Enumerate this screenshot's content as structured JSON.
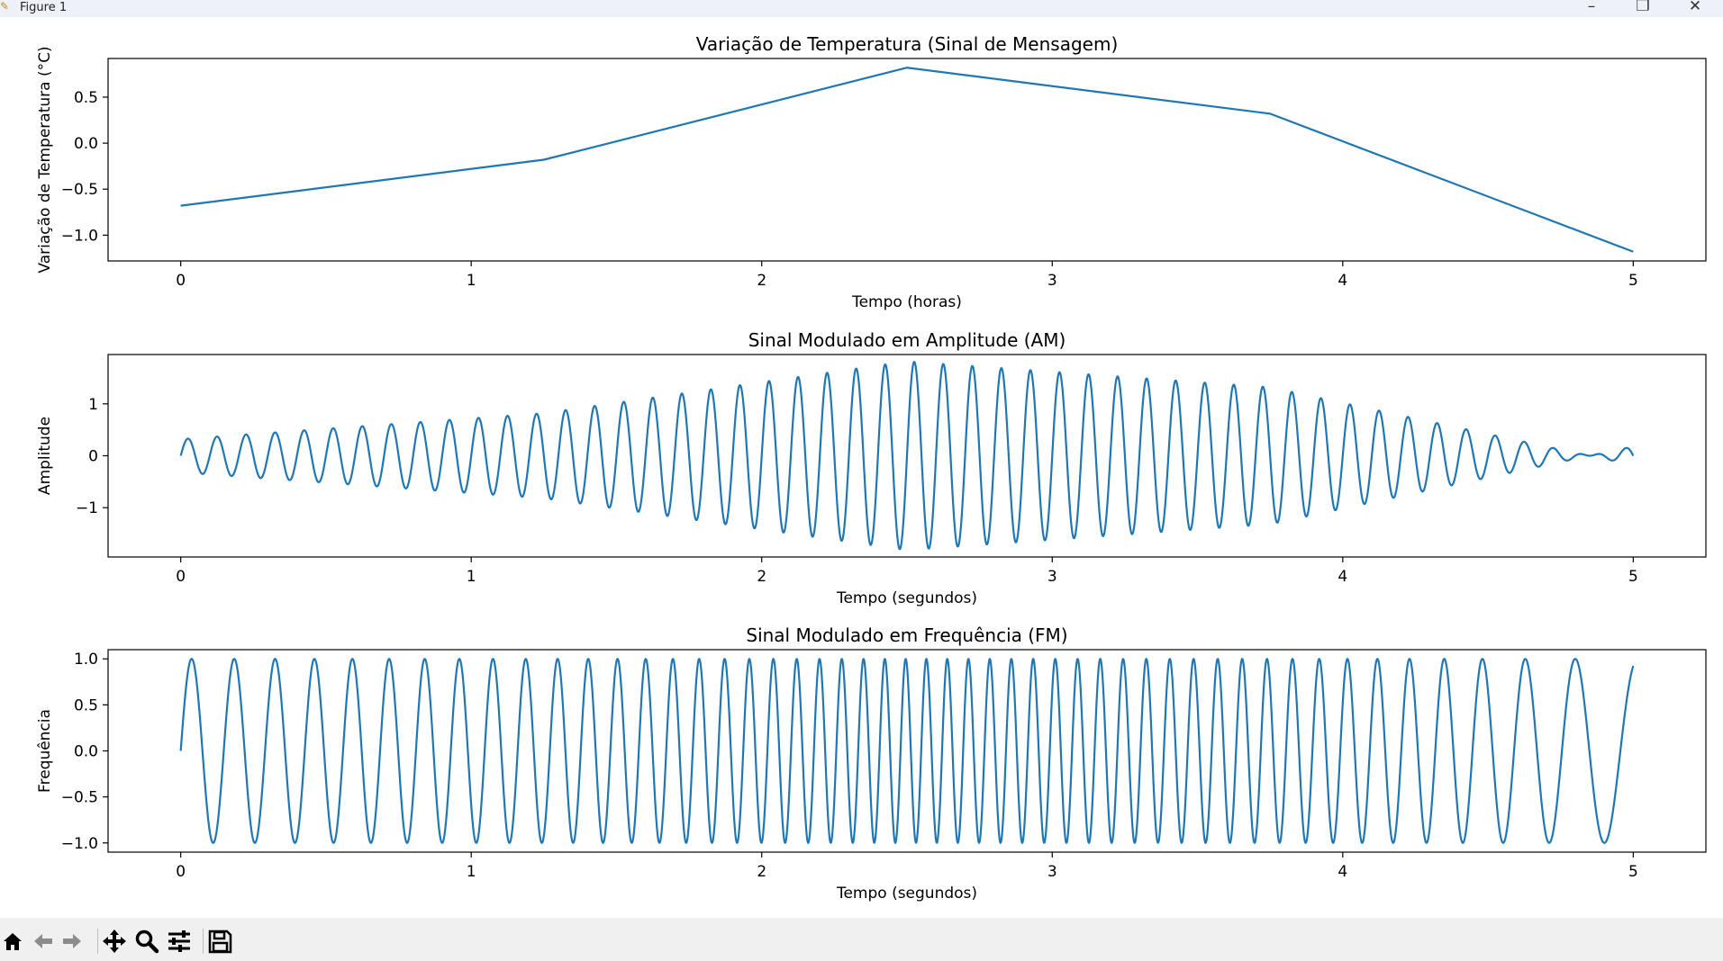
{
  "window": {
    "title": "Figure 1",
    "controls": {
      "minimize": "–",
      "maximize": "❐",
      "close": "✕"
    }
  },
  "toolbar": {
    "icons": [
      "home-icon",
      "back-icon",
      "forward-icon",
      "pan-icon",
      "zoom-icon",
      "configure-subplots-icon",
      "save-icon"
    ]
  },
  "colors": {
    "line": "#1f77b4",
    "axes": "#000000",
    "background": "#ffffff",
    "toolbar": "#f0f0f0"
  },
  "chart_data": [
    {
      "type": "line",
      "title": "Variação de Temperatura (Sinal de Mensagem)",
      "xlabel": "Tempo (horas)",
      "ylabel": "Variação de Temperatura (°C)",
      "x": [
        0,
        1.25,
        2.5,
        3.75,
        5
      ],
      "y": [
        -0.68,
        -0.18,
        0.82,
        0.32,
        -1.18
      ],
      "xlim": [
        -0.25,
        5.25
      ],
      "ylim": [
        -1.28,
        0.92
      ],
      "xticks": [
        0,
        1,
        2,
        3,
        4,
        5
      ],
      "xtick_labels": [
        "0",
        "1",
        "2",
        "3",
        "4",
        "5"
      ],
      "yticks": [
        0.5,
        0.0,
        -0.5,
        -1.0
      ],
      "ytick_labels": [
        "0.5",
        "0.0",
        "−0.5",
        "−1.0"
      ],
      "grid": false
    },
    {
      "type": "line",
      "title": "Sinal Modulado em Amplitude (AM)",
      "xlabel": "Tempo (segundos)",
      "ylabel": "Amplitude",
      "signal": "(1 + message(t)) * sin(2π·10·t)",
      "message_x": [
        0,
        1.25,
        2.5,
        3.75,
        5
      ],
      "message_y": [
        -0.68,
        -0.18,
        0.82,
        0.32,
        -1.18
      ],
      "carrier_freq": 10,
      "x_range": [
        0,
        5
      ],
      "xlim": [
        -0.25,
        5.25
      ],
      "ylim": [
        -1.95,
        1.95
      ],
      "xticks": [
        0,
        1,
        2,
        3,
        4,
        5
      ],
      "xtick_labels": [
        "0",
        "1",
        "2",
        "3",
        "4",
        "5"
      ],
      "yticks": [
        1,
        0,
        -1
      ],
      "ytick_labels": [
        "1",
        "0",
        "−1"
      ],
      "grid": false
    },
    {
      "type": "line",
      "title": "Sinal Modulado em Frequência (FM)",
      "xlabel": "Tempo (segundos)",
      "ylabel": "Frequência",
      "signal": "sin(2π·10·t + 2π·5·∫message dt)",
      "message_x": [
        0,
        1.25,
        2.5,
        3.75,
        5
      ],
      "message_y": [
        -0.68,
        -0.18,
        0.82,
        0.32,
        -1.18
      ],
      "carrier_freq": 10,
      "freq_deviation": 5,
      "x_range": [
        0,
        5
      ],
      "xlim": [
        -0.25,
        5.25
      ],
      "ylim": [
        -1.1,
        1.1
      ],
      "xticks": [
        0,
        1,
        2,
        3,
        4,
        5
      ],
      "xtick_labels": [
        "0",
        "1",
        "2",
        "3",
        "4",
        "5"
      ],
      "yticks": [
        1.0,
        0.5,
        0.0,
        -0.5,
        -1.0
      ],
      "ytick_labels": [
        "1.0",
        "0.5",
        "0.0",
        "−0.5",
        "−1.0"
      ],
      "grid": false
    }
  ]
}
